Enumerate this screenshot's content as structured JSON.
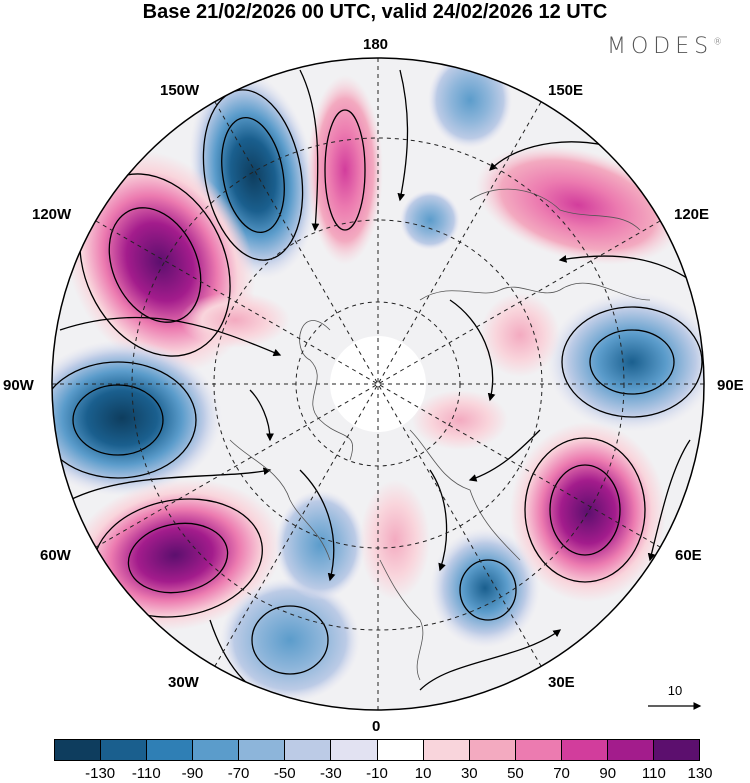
{
  "title": "Base 21/02/2026 00 UTC, valid 24/02/2026 12 UTC",
  "brand": "MODES",
  "brand_mark": "®",
  "longitudes": {
    "top": "180",
    "top_left": "150W",
    "top_right": "150E",
    "upper_left": "120W",
    "upper_right": "120E",
    "left": "90W",
    "right": "90E",
    "lower_left": "60W",
    "lower_right": "60E",
    "bottom_left": "30W",
    "bottom_right": "30E",
    "bottom": "0"
  },
  "reference_vector": "10",
  "colorbar": {
    "ticks": [
      "-130",
      "-110",
      "-90",
      "-70",
      "-50",
      "-30",
      "-10",
      "10",
      "30",
      "50",
      "70",
      "90",
      "110",
      "130"
    ],
    "colors": [
      "#0e3d5e",
      "#1a5f8e",
      "#2f7fb5",
      "#5b9ccb",
      "#8db5da",
      "#bccbe6",
      "#e2e2f2",
      "#ffffff",
      "#f9d5dc",
      "#f3aac0",
      "#ec7bb0",
      "#d23d9c",
      "#a31c8c",
      "#5c0f6e"
    ]
  },
  "anomaly_centers": [
    {
      "name": "low-150W",
      "value": -130,
      "lon": -145,
      "colat_deg": 52
    },
    {
      "name": "high-120W",
      "value": 130,
      "lon": -122,
      "colat_deg": 75
    },
    {
      "name": "low-90W",
      "value": -130,
      "lon": -95,
      "colat_deg": 78
    },
    {
      "name": "high-60W",
      "value": 130,
      "lon": -62,
      "colat_deg": 73
    },
    {
      "name": "low-30W",
      "value": -70,
      "lon": -25,
      "colat_deg": 62
    },
    {
      "name": "low-30E",
      "value": -70,
      "lon": 22,
      "colat_deg": 45
    },
    {
      "name": "high-60E",
      "value": 110,
      "lon": 52,
      "colat_deg": 60
    },
    {
      "name": "low-90E",
      "value": -110,
      "lon": 95,
      "colat_deg": 60
    },
    {
      "name": "high-140E",
      "value": 50,
      "lon": 138,
      "colat_deg": 62
    },
    {
      "name": "high-175W",
      "value": 70,
      "lon": -172,
      "colat_deg": 45
    }
  ]
}
